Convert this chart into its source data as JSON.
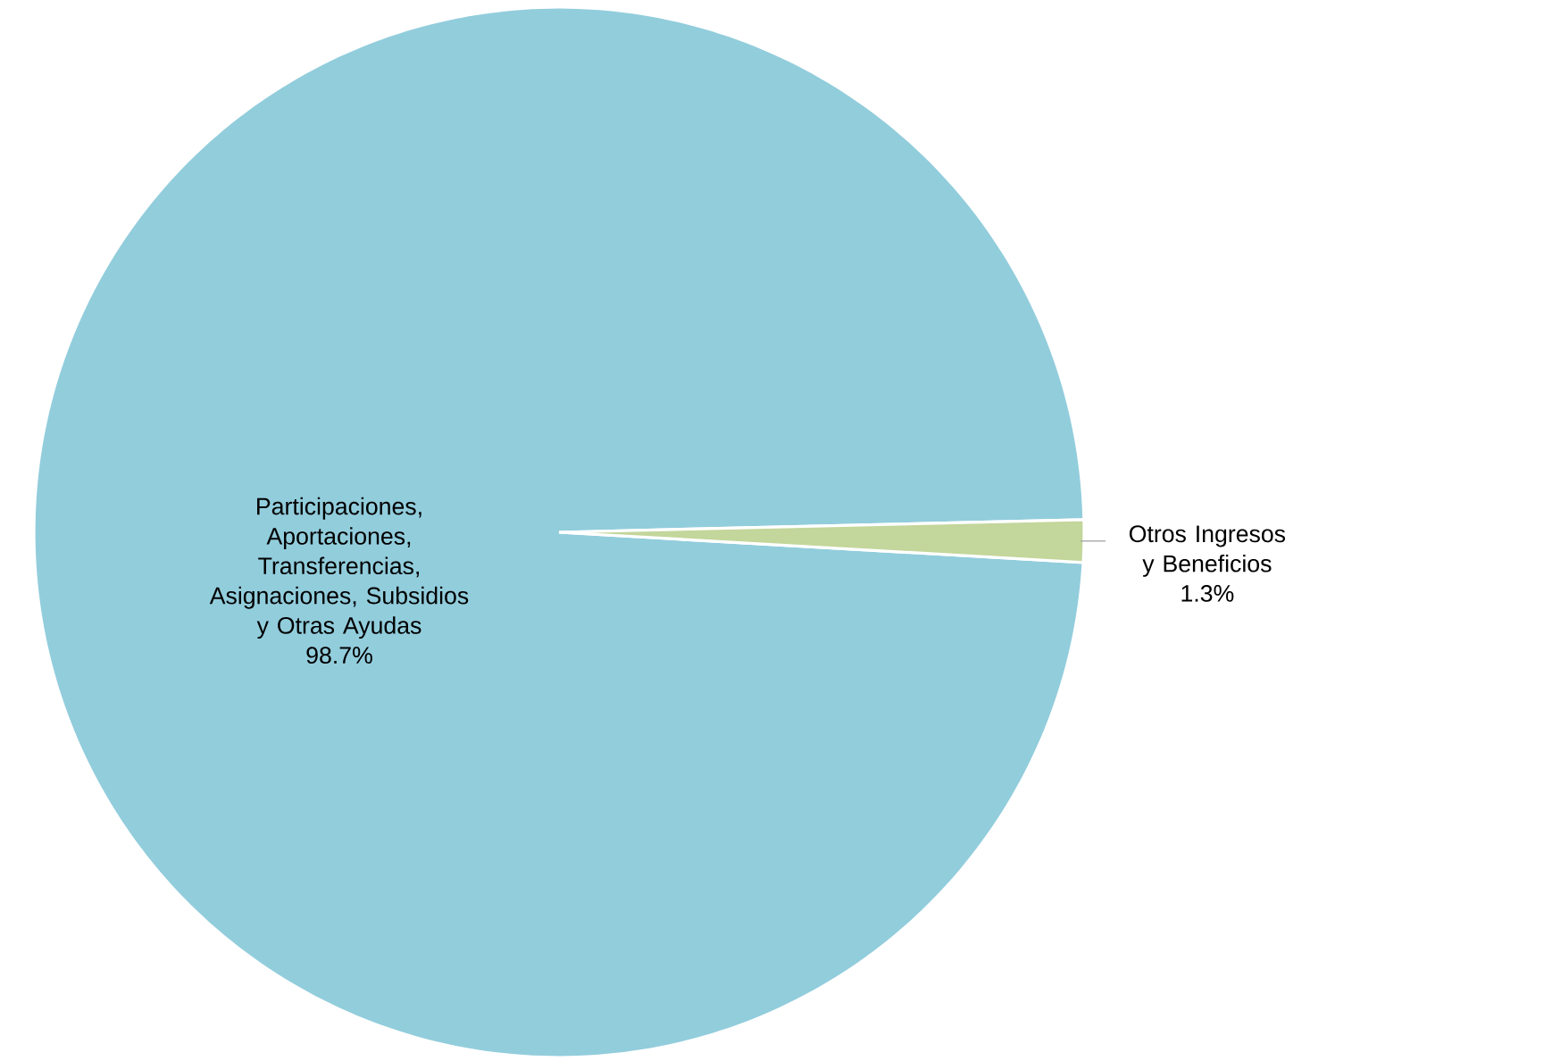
{
  "chart_data": {
    "type": "pie",
    "categories": [
      "Participaciones, Aportaciones, Transferencias, Asignaciones, Subsidios y Otras Ayudas",
      "Otros Ingresos y Beneficios"
    ],
    "values": [
      98.7,
      1.3
    ],
    "value_labels": [
      "98.7%",
      "1.3%"
    ],
    "colors": [
      "#92cddc",
      "#c3d69b"
    ]
  }
}
